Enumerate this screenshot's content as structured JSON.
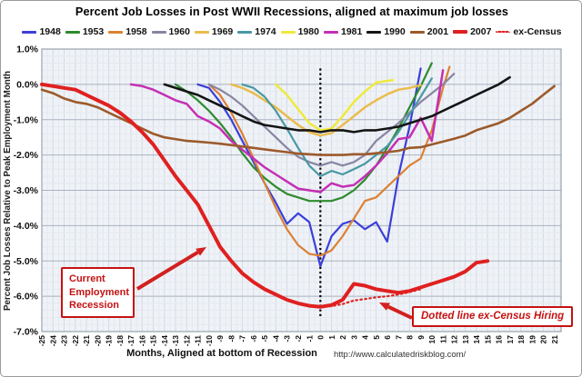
{
  "title": "Percent Job Losses in Post WWII Recessions, aligned at maximum job losses",
  "footer": {
    "url": "http://www.calculatedriskblog.com/"
  },
  "annotations": {
    "current_recession": {
      "text": "Current Employment Recession",
      "color": "#c51212"
    },
    "ex_census_note": {
      "text": "Dotted line ex-Census Hiring",
      "color": "#c51212"
    },
    "trough_marker_month": 0
  },
  "chart_data": {
    "type": "line",
    "title": "Percent Job Losses in Post WWII Recessions, aligned at maximum job losses",
    "xlabel": "Months, Aligned at bottom of Recession",
    "ylabel": "Percent Job Losses Relative to Peak Employment Month",
    "xlim": [
      -25,
      21.6
    ],
    "ylim": [
      -7,
      1
    ],
    "x_tick_range": [
      -25,
      21
    ],
    "x_tick_step": 1,
    "y_tick_step": 1,
    "y_tick_labels": [
      "1.0%",
      "0.0%",
      "-1.0%",
      "-2.0%",
      "-3.0%",
      "-4.0%",
      "-5.0%",
      "-6.0%",
      "-7.0%"
    ],
    "grid": {
      "x_minor": 0.5,
      "y_minor": 0.2,
      "on": true
    },
    "legend_position": "top",
    "series": [
      {
        "name": "1948",
        "color": "#3b3fd8",
        "width": 2.2,
        "x": [
          -11,
          -10,
          -9,
          -8,
          -7,
          -6,
          -5,
          -4,
          -3,
          -2,
          -1,
          0,
          1,
          2,
          3,
          4,
          5,
          6,
          7,
          8,
          9
        ],
        "y": [
          0,
          -0.1,
          -0.5,
          -1.0,
          -1.6,
          -2.2,
          -2.8,
          -3.35,
          -3.95,
          -3.65,
          -3.9,
          -5.15,
          -4.3,
          -3.95,
          -3.85,
          -4.1,
          -3.9,
          -4.45,
          -2.6,
          -1.2,
          0.45
        ]
      },
      {
        "name": "1953",
        "color": "#2e8b2e",
        "width": 2.2,
        "x": [
          -13,
          -12,
          -11,
          -10,
          -9,
          -8,
          -7,
          -6,
          -5,
          -4,
          -3,
          -2,
          -1,
          0,
          1,
          2,
          3,
          4,
          5,
          6,
          7,
          8,
          9,
          10
        ],
        "y": [
          0,
          -0.2,
          -0.45,
          -0.75,
          -1.1,
          -1.5,
          -1.95,
          -2.35,
          -2.65,
          -2.9,
          -3.1,
          -3.2,
          -3.3,
          -3.3,
          -3.3,
          -3.2,
          -3.0,
          -2.7,
          -2.3,
          -1.8,
          -1.25,
          -0.65,
          -0.05,
          0.6
        ]
      },
      {
        "name": "1958",
        "color": "#dc8133",
        "width": 2.2,
        "x": [
          -10,
          -9,
          -8,
          -7,
          -6,
          -5,
          -4,
          -3,
          -2,
          -1,
          0,
          1,
          2,
          3,
          4,
          5,
          6,
          7,
          8,
          9,
          10,
          11,
          11.6
        ],
        "y": [
          0,
          -0.3,
          -0.8,
          -1.4,
          -2.1,
          -2.8,
          -3.5,
          -4.1,
          -4.55,
          -4.8,
          -4.85,
          -4.7,
          -4.3,
          -3.8,
          -3.3,
          -3.2,
          -2.9,
          -2.6,
          -2.3,
          -2.1,
          -1.3,
          -0.1,
          0.5
        ]
      },
      {
        "name": "1960",
        "color": "#8a84a2",
        "width": 2.2,
        "x": [
          -10,
          -9,
          -8,
          -7,
          -6,
          -5,
          -4,
          -3,
          -2,
          -1,
          0,
          1,
          2,
          3,
          4,
          5,
          6,
          7,
          8,
          9,
          10,
          11,
          12
        ],
        "y": [
          0,
          -0.15,
          -0.35,
          -0.6,
          -0.9,
          -1.2,
          -1.5,
          -1.8,
          -2.05,
          -2.2,
          -2.3,
          -2.2,
          -2.3,
          -2.2,
          -2.0,
          -1.6,
          -1.35,
          -1.1,
          -0.8,
          -0.5,
          -0.25,
          0.0,
          0.3
        ]
      },
      {
        "name": "1969",
        "color": "#ebbc4d",
        "width": 2.5,
        "x": [
          -8,
          -7,
          -6,
          -5,
          -4,
          -3,
          -2,
          -1,
          0,
          1,
          2,
          3,
          4,
          5,
          6,
          7,
          8,
          9
        ],
        "y": [
          0,
          -0.1,
          -0.25,
          -0.45,
          -0.65,
          -0.9,
          -1.15,
          -1.35,
          -1.45,
          -1.38,
          -1.15,
          -0.9,
          -0.65,
          -0.45,
          -0.28,
          -0.15,
          -0.1,
          -0.02
        ]
      },
      {
        "name": "1974",
        "color": "#4898a4",
        "width": 2.2,
        "x": [
          -7,
          -6,
          -5,
          -4,
          -3,
          -2,
          -1,
          0,
          1,
          2,
          3,
          4,
          5,
          6,
          7,
          8,
          9,
          10
        ],
        "y": [
          0,
          -0.1,
          -0.35,
          -0.75,
          -1.25,
          -1.8,
          -2.3,
          -2.6,
          -2.45,
          -2.55,
          -2.4,
          -2.25,
          -2.0,
          -1.75,
          -1.35,
          -0.85,
          -0.35,
          0.17
        ]
      },
      {
        "name": "1980",
        "color": "#f0e93c",
        "width": 2.5,
        "x": [
          -4,
          -3,
          -2,
          -1,
          0,
          1,
          2,
          3,
          4,
          5,
          6,
          6.5
        ],
        "y": [
          0,
          -0.3,
          -0.7,
          -1.1,
          -1.3,
          -1.25,
          -0.9,
          -0.5,
          -0.2,
          0.05,
          0.1,
          0.12
        ]
      },
      {
        "name": "1981",
        "color": "#c42fb4",
        "width": 2.5,
        "x": [
          -17,
          -16,
          -15,
          -14,
          -13,
          -12,
          -11,
          -10,
          -9,
          -8,
          -7,
          -6,
          -5,
          -4,
          -3,
          -2,
          -1,
          0,
          1,
          2,
          3,
          4,
          5,
          6,
          7,
          8,
          9,
          10,
          11
        ],
        "y": [
          0,
          -0.05,
          -0.15,
          -0.3,
          -0.45,
          -0.55,
          -0.9,
          -1.05,
          -1.25,
          -1.6,
          -1.85,
          -2.1,
          -2.35,
          -2.55,
          -2.75,
          -2.95,
          -3.0,
          -3.05,
          -2.8,
          -2.9,
          -2.85,
          -2.6,
          -2.3,
          -1.95,
          -1.55,
          -1.5,
          -0.95,
          -1.6,
          0.4
        ]
      },
      {
        "name": "1990",
        "color": "#151515",
        "width": 2.6,
        "x": [
          -14,
          -13,
          -12,
          -11,
          -10,
          -9,
          -8,
          -7,
          -6,
          -5,
          -4,
          -3,
          -2,
          -1,
          0,
          1,
          2,
          3,
          4,
          5,
          6,
          7,
          8,
          9,
          10,
          11,
          12,
          13,
          14,
          15,
          16,
          17
        ],
        "y": [
          0,
          -0.1,
          -0.2,
          -0.3,
          -0.45,
          -0.6,
          -0.75,
          -0.9,
          -1.05,
          -1.15,
          -1.2,
          -1.25,
          -1.3,
          -1.3,
          -1.35,
          -1.3,
          -1.3,
          -1.35,
          -1.3,
          -1.3,
          -1.25,
          -1.2,
          -1.1,
          -1.0,
          -0.9,
          -0.75,
          -0.6,
          -0.45,
          -0.3,
          -0.15,
          0.0,
          0.2
        ]
      },
      {
        "name": "2001",
        "color": "#9c5a2b",
        "width": 2.6,
        "x": [
          -25,
          -24,
          -23,
          -22,
          -21,
          -20,
          -19,
          -18,
          -17,
          -16,
          -15,
          -14,
          -13,
          -12,
          -11,
          -10,
          -9,
          -8,
          -7,
          -6,
          -5,
          -4,
          -3,
          -2,
          -1,
          0,
          1,
          2,
          3,
          4,
          5,
          6,
          7,
          8,
          9,
          10,
          11,
          12,
          13,
          14,
          15,
          16,
          17,
          18,
          19,
          20,
          21
        ],
        "y": [
          -0.15,
          -0.25,
          -0.4,
          -0.5,
          -0.55,
          -0.65,
          -0.8,
          -0.95,
          -1.1,
          -1.25,
          -1.4,
          -1.5,
          -1.55,
          -1.6,
          -1.62,
          -1.65,
          -1.68,
          -1.72,
          -1.76,
          -1.8,
          -1.84,
          -1.88,
          -1.92,
          -1.96,
          -1.98,
          -2.0,
          -2.0,
          -2.0,
          -1.98,
          -1.98,
          -1.95,
          -1.92,
          -1.88,
          -1.8,
          -1.78,
          -1.7,
          -1.62,
          -1.54,
          -1.45,
          -1.3,
          -1.2,
          -1.1,
          -0.95,
          -0.75,
          -0.55,
          -0.3,
          -0.05
        ]
      },
      {
        "name": "2007",
        "color": "#e02020",
        "width": 4,
        "x": [
          -25,
          -24,
          -23,
          -22,
          -21,
          -20,
          -19,
          -18,
          -17,
          -16,
          -15,
          -14,
          -13,
          -12,
          -11,
          -10,
          -9,
          -8,
          -7,
          -6,
          -5,
          -4,
          -3,
          -2,
          -1,
          0,
          1,
          2,
          3,
          4,
          5,
          6,
          7,
          8,
          9,
          10,
          11,
          12,
          13,
          14,
          15
        ],
        "y": [
          0,
          -0.05,
          -0.1,
          -0.15,
          -0.3,
          -0.45,
          -0.6,
          -0.8,
          -1.05,
          -1.35,
          -1.7,
          -2.15,
          -2.6,
          -3.0,
          -3.4,
          -4.0,
          -4.6,
          -5.0,
          -5.35,
          -5.6,
          -5.8,
          -5.95,
          -6.1,
          -6.2,
          -6.27,
          -6.3,
          -6.25,
          -6.1,
          -5.65,
          -5.7,
          -5.8,
          -5.85,
          -5.9,
          -5.85,
          -5.75,
          -5.65,
          -5.55,
          -5.45,
          -5.3,
          -5.05,
          -5.0
        ]
      },
      {
        "name": "ex-Census",
        "color": "#e02020",
        "width": 2.2,
        "dash": "1.5 3.5",
        "x": [
          0,
          1,
          2,
          3,
          4,
          5,
          6,
          7,
          8,
          9
        ],
        "y": [
          -6.3,
          -6.28,
          -6.22,
          -6.12,
          -6.08,
          -6.03,
          -6.0,
          -5.95,
          -5.88,
          -5.8
        ]
      }
    ]
  }
}
